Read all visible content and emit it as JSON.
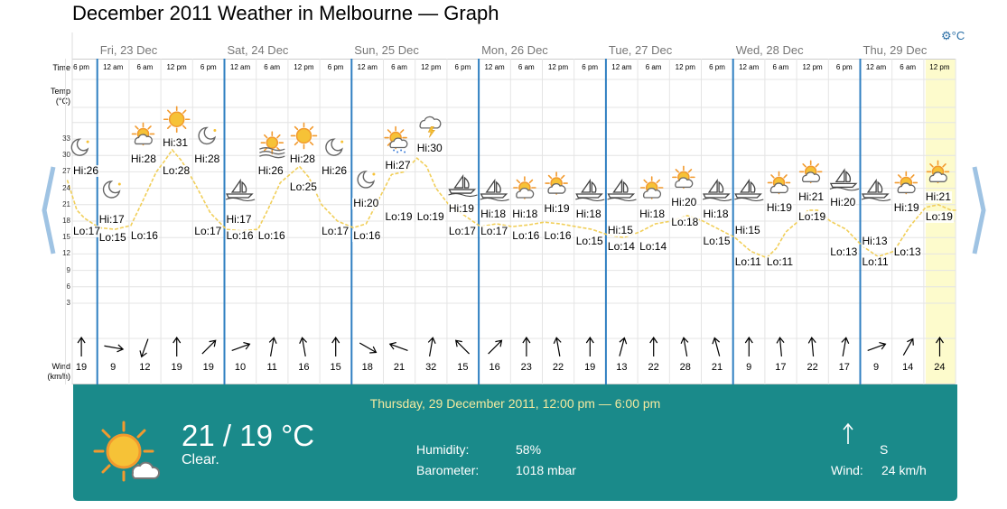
{
  "title": "December 2011 Weather in Melbourne — Graph",
  "unit_toggle": "°C",
  "row_labels": {
    "time": "Time",
    "temp": "Temp",
    "temp_unit": "(°C)",
    "wind": "Wind",
    "wind_unit": "(km/h)"
  },
  "y_ticks": [
    "33",
    "30",
    "27",
    "24",
    "21",
    "18",
    "15",
    "12",
    "9",
    "6",
    "3"
  ],
  "days": [
    {
      "label": "Fri, 23 Dec"
    },
    {
      "label": "Sat, 24 Dec"
    },
    {
      "label": "Sun, 25 Dec"
    },
    {
      "label": "Mon, 26 Dec"
    },
    {
      "label": "Tue, 27 Dec"
    },
    {
      "label": "Wed, 28 Dec"
    },
    {
      "label": "Thu, 29 Dec"
    }
  ],
  "columns": [
    {
      "time": "6 pm",
      "wind_speed": "19",
      "wind_deg": 0,
      "icon": "moon"
    },
    {
      "time": "12 am",
      "wind_speed": "9",
      "wind_deg": 100,
      "icon": "moon"
    },
    {
      "time": "6 am",
      "wind_speed": "12",
      "wind_deg": 200,
      "icon": "partly-sunny"
    },
    {
      "time": "12 pm",
      "wind_speed": "19",
      "wind_deg": 0,
      "icon": "sun"
    },
    {
      "time": "6 pm",
      "wind_speed": "19",
      "wind_deg": 45,
      "icon": "moon"
    },
    {
      "time": "12 am",
      "wind_speed": "10",
      "wind_deg": 70,
      "icon": "sailboat"
    },
    {
      "time": "6 am",
      "wind_speed": "11",
      "wind_deg": 10,
      "icon": "fog-sun"
    },
    {
      "time": "12 pm",
      "wind_speed": "16",
      "wind_deg": 350,
      "icon": "sun"
    },
    {
      "time": "6 pm",
      "wind_speed": "15",
      "wind_deg": 0,
      "icon": "moon"
    },
    {
      "time": "12 am",
      "wind_speed": "18",
      "wind_deg": 120,
      "icon": "moon"
    },
    {
      "time": "6 am",
      "wind_speed": "21",
      "wind_deg": 290,
      "icon": "rain-sun"
    },
    {
      "time": "12 pm",
      "wind_speed": "32",
      "wind_deg": 10,
      "icon": "storm"
    },
    {
      "time": "6 pm",
      "wind_speed": "15",
      "wind_deg": 315,
      "icon": "sailboat"
    },
    {
      "time": "12 am",
      "wind_speed": "16",
      "wind_deg": 45,
      "icon": "sailboat"
    },
    {
      "time": "6 am",
      "wind_speed": "23",
      "wind_deg": 0,
      "icon": "partly-sunny"
    },
    {
      "time": "12 pm",
      "wind_speed": "22",
      "wind_deg": 350,
      "icon": "partly-sunny"
    },
    {
      "time": "6 pm",
      "wind_speed": "19",
      "wind_deg": 0,
      "icon": "sailboat"
    },
    {
      "time": "12 am",
      "wind_speed": "13",
      "wind_deg": 15,
      "icon": "sailboat"
    },
    {
      "time": "6 am",
      "wind_speed": "22",
      "wind_deg": 0,
      "icon": "partly-sunny"
    },
    {
      "time": "12 pm",
      "wind_speed": "28",
      "wind_deg": 350,
      "icon": "partly-sunny"
    },
    {
      "time": "6 pm",
      "wind_speed": "21",
      "wind_deg": 345,
      "icon": "sailboat"
    },
    {
      "time": "12 am",
      "wind_speed": "9",
      "wind_deg": 0,
      "icon": "sailboat"
    },
    {
      "time": "6 am",
      "wind_speed": "17",
      "wind_deg": 355,
      "icon": "partly-sunny"
    },
    {
      "time": "12 pm",
      "wind_speed": "22",
      "wind_deg": 355,
      "icon": "partly-sunny"
    },
    {
      "time": "6 pm",
      "wind_speed": "17",
      "wind_deg": 10,
      "icon": "sailboat"
    },
    {
      "time": "12 am",
      "wind_speed": "9",
      "wind_deg": 70,
      "icon": "sailboat"
    },
    {
      "time": "6 am",
      "wind_speed": "14",
      "wind_deg": 30,
      "icon": "partly-sunny"
    },
    {
      "time": "12 pm",
      "wind_speed": "24",
      "wind_deg": 0,
      "icon": "partly-sunny"
    }
  ],
  "hilo": [
    {
      "text": "Lo:17",
      "col": 0,
      "temp": 16.2
    },
    {
      "text": "Hi:26",
      "col": 0,
      "temp": 27.2
    },
    {
      "text": "Hi:17",
      "col": 1,
      "temp": 18.3
    },
    {
      "text": "Lo:15",
      "col": 1,
      "temp": 15.0
    },
    {
      "text": "Lo:16",
      "col": 2,
      "temp": 15.4
    },
    {
      "text": "Hi:28",
      "col": 2,
      "temp": 29.3
    },
    {
      "text": "Hi:31",
      "col": 3,
      "temp": 32.3
    },
    {
      "text": "Lo:28",
      "col": 3,
      "temp": 27.3
    },
    {
      "text": "Hi:28",
      "col": 4,
      "temp": 29.3
    },
    {
      "text": "Lo:17",
      "col": 4,
      "temp": 16.2
    },
    {
      "text": "Hi:17",
      "col": 5,
      "temp": 18.3
    },
    {
      "text": "Lo:16",
      "col": 5,
      "temp": 15.4
    },
    {
      "text": "Lo:16",
      "col": 6,
      "temp": 15.4
    },
    {
      "text": "Hi:26",
      "col": 6,
      "temp": 27.2
    },
    {
      "text": "Hi:28",
      "col": 7,
      "temp": 29.3
    },
    {
      "text": "Lo:25",
      "col": 7,
      "temp": 24.3
    },
    {
      "text": "Hi:26",
      "col": 8,
      "temp": 27.2
    },
    {
      "text": "Lo:17",
      "col": 8,
      "temp": 16.2
    },
    {
      "text": "Hi:20",
      "col": 9,
      "temp": 21.3
    },
    {
      "text": "Lo:16",
      "col": 9,
      "temp": 15.4
    },
    {
      "text": "Hi:27",
      "col": 10,
      "temp": 28.3
    },
    {
      "text": "Lo:19",
      "col": 10,
      "temp": 18.9
    },
    {
      "text": "Hi:30",
      "col": 11,
      "temp": 31.3
    },
    {
      "text": "Lo:19",
      "col": 11,
      "temp": 18.9
    },
    {
      "text": "Hi:19",
      "col": 12,
      "temp": 20.3
    },
    {
      "text": "Lo:17",
      "col": 12,
      "temp": 16.2
    },
    {
      "text": "Hi:18",
      "col": 13,
      "temp": 19.4
    },
    {
      "text": "Lo:17",
      "col": 13,
      "temp": 16.2
    },
    {
      "text": "Hi:18",
      "col": 14,
      "temp": 19.4
    },
    {
      "text": "Lo:16",
      "col": 14,
      "temp": 15.4
    },
    {
      "text": "Hi:19",
      "col": 15,
      "temp": 20.3
    },
    {
      "text": "Lo:16",
      "col": 15,
      "temp": 15.4
    },
    {
      "text": "Hi:18",
      "col": 16,
      "temp": 19.4
    },
    {
      "text": "Lo:15",
      "col": 16,
      "temp": 14.4
    },
    {
      "text": "Hi:15",
      "col": 17,
      "temp": 16.3
    },
    {
      "text": "Lo:14",
      "col": 17,
      "temp": 13.4
    },
    {
      "text": "Hi:18",
      "col": 18,
      "temp": 19.4
    },
    {
      "text": "Lo:14",
      "col": 18,
      "temp": 13.4
    },
    {
      "text": "Hi:20",
      "col": 19,
      "temp": 21.4
    },
    {
      "text": "Lo:18",
      "col": 19,
      "temp": 17.8
    },
    {
      "text": "Hi:18",
      "col": 20,
      "temp": 19.4
    },
    {
      "text": "Lo:15",
      "col": 20,
      "temp": 14.4
    },
    {
      "text": "Hi:15",
      "col": 21,
      "temp": 16.3
    },
    {
      "text": "Lo:11",
      "col": 21,
      "temp": 10.6
    },
    {
      "text": "Hi:19",
      "col": 22,
      "temp": 20.4
    },
    {
      "text": "Lo:11",
      "col": 22,
      "temp": 10.6
    },
    {
      "text": "Hi:21",
      "col": 23,
      "temp": 22.4
    },
    {
      "text": "Lo:19",
      "col": 23,
      "temp": 18.9
    },
    {
      "text": "Hi:20",
      "col": 24,
      "temp": 21.4
    },
    {
      "text": "Lo:13",
      "col": 24,
      "temp": 12.4
    },
    {
      "text": "Hi:13",
      "col": 25,
      "temp": 14.4
    },
    {
      "text": "Lo:11",
      "col": 25,
      "temp": 10.6
    },
    {
      "text": "Hi:19",
      "col": 26,
      "temp": 20.4
    },
    {
      "text": "Lo:13",
      "col": 26,
      "temp": 12.4
    },
    {
      "text": "Hi:21",
      "col": 27,
      "temp": 22.4
    },
    {
      "text": "Lo:19",
      "col": 27,
      "temp": 18.9
    }
  ],
  "temp_curve": [
    [
      0,
      25.5
    ],
    [
      0.3,
      20
    ],
    [
      0.55,
      18.5
    ],
    [
      1,
      16.8
    ],
    [
      1.5,
      16.5
    ],
    [
      2,
      17.2
    ],
    [
      2.4,
      22
    ],
    [
      2.8,
      27
    ],
    [
      3,
      28.5
    ],
    [
      3.3,
      31
    ],
    [
      3.6,
      29
    ],
    [
      4,
      25
    ],
    [
      4.5,
      19.5
    ],
    [
      5,
      16.5
    ],
    [
      5.5,
      16.2
    ],
    [
      6,
      16.5
    ],
    [
      6.3,
      20
    ],
    [
      6.7,
      25
    ],
    [
      7,
      26.5
    ],
    [
      7.3,
      28
    ],
    [
      7.6,
      26
    ],
    [
      8,
      21
    ],
    [
      8.5,
      18
    ],
    [
      9,
      16.8
    ],
    [
      9.4,
      17.5
    ],
    [
      9.8,
      22
    ],
    [
      10.2,
      26.5
    ],
    [
      10.6,
      27
    ],
    [
      11,
      29.5
    ],
    [
      11.3,
      28
    ],
    [
      11.6,
      24
    ],
    [
      12,
      21
    ],
    [
      12.5,
      19
    ],
    [
      13,
      17
    ],
    [
      13.5,
      17.5
    ],
    [
      14,
      17
    ],
    [
      14.5,
      17.3
    ],
    [
      15,
      17.8
    ],
    [
      15.5,
      17.5
    ],
    [
      16,
      17
    ],
    [
      16.5,
      16.5
    ],
    [
      17,
      15.5
    ],
    [
      17.5,
      15
    ],
    [
      18,
      16
    ],
    [
      18.5,
      17.5
    ],
    [
      19,
      18
    ],
    [
      19.5,
      19
    ],
    [
      20,
      18
    ],
    [
      20.5,
      16.5
    ],
    [
      21,
      15
    ],
    [
      21.5,
      12.5
    ],
    [
      22,
      11.3
    ],
    [
      22.3,
      13
    ],
    [
      22.6,
      16
    ],
    [
      23,
      18
    ],
    [
      23.3,
      20
    ],
    [
      23.6,
      20
    ],
    [
      24,
      18
    ],
    [
      24.5,
      16.5
    ],
    [
      25,
      13.5
    ],
    [
      25.5,
      11.5
    ],
    [
      26,
      12.5
    ],
    [
      26.5,
      17
    ],
    [
      27,
      20.5
    ],
    [
      27.4,
      21
    ],
    [
      27.8,
      20
    ],
    [
      28,
      20
    ]
  ],
  "selected_col": 27,
  "detail": {
    "date": "Thursday, 29 December 2011, 12:00 pm — 6:00 pm",
    "temp": "21 / 19 °C",
    "desc": "Clear.",
    "humidity_label": "Humidity:",
    "humidity": "58%",
    "barometer_label": "Barometer:",
    "barometer": "1018 mbar",
    "wind_dir": "S",
    "wind_label": "Wind:",
    "wind_speed": "24 km/h"
  },
  "colors": {
    "day_line": "#2f7fc1",
    "grid": "#e4e4e4",
    "curve": "#f1cf5a",
    "highlight": "#fdfbcc",
    "panel": "#1a8a8a",
    "date_text": "#f3e9a0",
    "nav_arrow": "#9fc3e3"
  }
}
